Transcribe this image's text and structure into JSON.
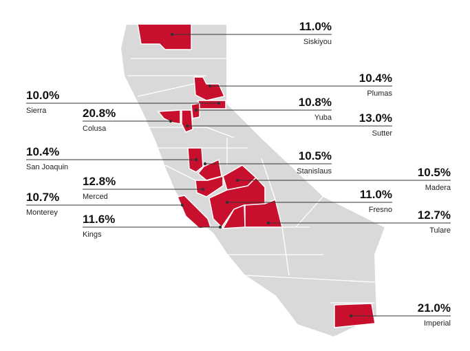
{
  "counties": [
    {
      "name": "Siskiyou",
      "value": 11.0,
      "value_label": "11.0%"
    },
    {
      "name": "Plumas",
      "value": 10.4,
      "value_label": "10.4%"
    },
    {
      "name": "Sierra",
      "value": 10.0,
      "value_label": "10.0%"
    },
    {
      "name": "Yuba",
      "value": 10.8,
      "value_label": "10.8%"
    },
    {
      "name": "Colusa",
      "value": 20.8,
      "value_label": "20.8%"
    },
    {
      "name": "Sutter",
      "value": 13.0,
      "value_label": "13.0%"
    },
    {
      "name": "San Joaquin",
      "value": 10.4,
      "value_label": "10.4%"
    },
    {
      "name": "Stanislaus",
      "value": 10.5,
      "value_label": "10.5%"
    },
    {
      "name": "Madera",
      "value": 10.5,
      "value_label": "10.5%"
    },
    {
      "name": "Merced",
      "value": 12.8,
      "value_label": "12.8%"
    },
    {
      "name": "Monterey",
      "value": 10.7,
      "value_label": "10.7%"
    },
    {
      "name": "Fresno",
      "value": 11.0,
      "value_label": "11.0%"
    },
    {
      "name": "Kings",
      "value": 11.6,
      "value_label": "11.6%"
    },
    {
      "name": "Tulare",
      "value": 12.7,
      "value_label": "12.7%"
    },
    {
      "name": "Imperial",
      "value": 21.0,
      "value_label": "21.0%"
    }
  ]
}
